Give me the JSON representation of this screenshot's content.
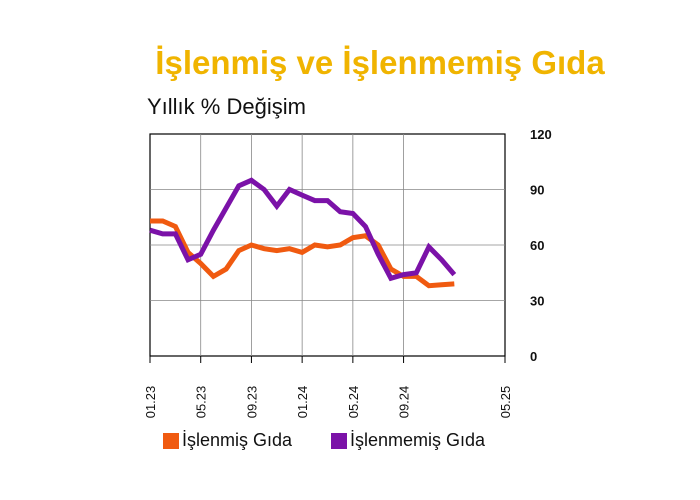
{
  "title": "İşlenmiş ve İşlenmemiş Gıda",
  "subtitle": "Yıllık % Değişim",
  "colors": {
    "processed": "#f05a10",
    "unprocessed": "#7b12a8",
    "title": "#f0b400",
    "grid": "#888888"
  },
  "chart_data": {
    "type": "line",
    "title": "İşlenmiş ve İşlenmemiş Gıda",
    "ylabel": "Yıllık % Değişim",
    "xlabel": "",
    "ylim": [
      0,
      120
    ],
    "y_ticks": [
      0,
      30,
      60,
      90,
      120
    ],
    "y_axis_side": "right",
    "grid": true,
    "legend_position": "bottom",
    "x": [
      "01.23",
      "02.23",
      "03.23",
      "04.23",
      "05.23",
      "06.23",
      "07.23",
      "08.23",
      "09.23",
      "10.23",
      "11.23",
      "12.23",
      "01.24",
      "02.24",
      "03.24",
      "04.24",
      "05.24",
      "06.24",
      "07.24",
      "08.24",
      "09.24",
      "10.24",
      "11.24",
      "12.24",
      "01.25",
      "02.25",
      "03.25",
      "04.25",
      "05.25"
    ],
    "x_tick_labels": [
      "01.23",
      "05.23",
      "09.23",
      "01.24",
      "05.24",
      "09.24",
      "05.25"
    ],
    "series": [
      {
        "name": "İşlenmiş Gıda",
        "color": "#f05a10",
        "values": [
          73,
          73,
          70,
          56,
          50,
          43,
          47,
          57,
          60,
          58,
          57,
          58,
          56,
          60,
          59,
          60,
          64,
          65,
          60,
          47,
          43,
          43,
          38,
          38.5,
          39,
          null,
          null,
          null,
          null
        ]
      },
      {
        "name": "İşlenmemiş Gıda",
        "color": "#7b12a8",
        "values": [
          68,
          66,
          66,
          52,
          55,
          68,
          80,
          92,
          95,
          90,
          81,
          90,
          87,
          84,
          84,
          78,
          77,
          70,
          55,
          42,
          44,
          45,
          59,
          52,
          44,
          null,
          null,
          null,
          null
        ]
      }
    ]
  },
  "legend": [
    {
      "label": "İşlenmiş Gıda",
      "color": "#f05a10"
    },
    {
      "label": "İşlenmemiş Gıda",
      "color": "#7b12a8"
    }
  ]
}
